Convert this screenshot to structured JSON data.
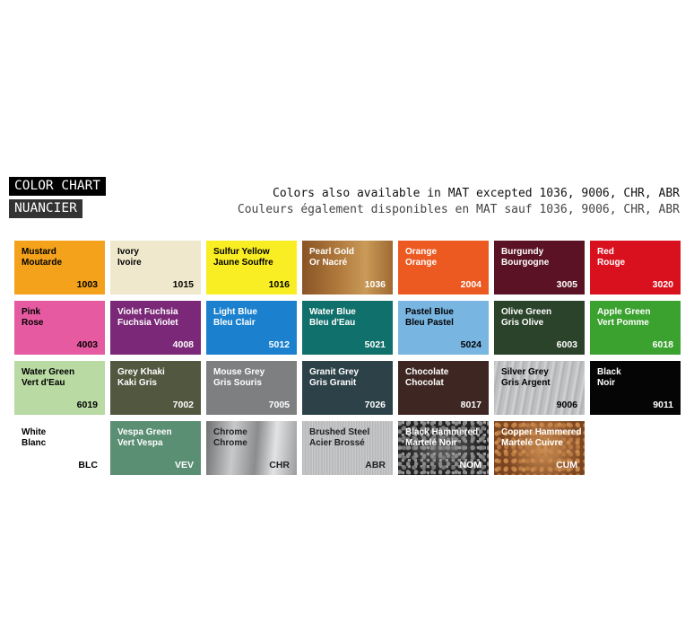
{
  "header": {
    "title_en": "COLOR CHART",
    "title_fr": "NUANCIER",
    "note_en": "Colors also available in MAT excepted 1036, 9006, CHR, ABR",
    "note_fr": "Couleurs également disponibles en MAT sauf 1036, 9006, CHR, ABR"
  },
  "swatches": [
    {
      "name_en": "Mustard",
      "name_fr": "Moutarde",
      "code": "1003",
      "bg": "#f4a21c",
      "fg": "#000000"
    },
    {
      "name_en": "Ivory",
      "name_fr": "Ivoire",
      "code": "1015",
      "bg": "#efe8cc",
      "fg": "#000000"
    },
    {
      "name_en": "Sulfur Yellow",
      "name_fr": "Jaune Souffre",
      "code": "1016",
      "bg": "#f9ee24",
      "fg": "#000000"
    },
    {
      "name_en": "Pearl Gold",
      "name_fr": "Or Nacré",
      "code": "1036",
      "bg": "#9a6130",
      "fg": "#ffffff",
      "texture": "pearl"
    },
    {
      "name_en": "Orange",
      "name_fr": "Orange",
      "code": "2004",
      "bg": "#ec5a22",
      "fg": "#ffffff"
    },
    {
      "name_en": "Burgundy",
      "name_fr": "Bourgogne",
      "code": "3005",
      "bg": "#5a1224",
      "fg": "#ffffff"
    },
    {
      "name_en": "Red",
      "name_fr": "Rouge",
      "code": "3020",
      "bg": "#d9111f",
      "fg": "#ffffff"
    },
    {
      "name_en": "Pink",
      "name_fr": "Rose",
      "code": "4003",
      "bg": "#e65aa1",
      "fg": "#000000"
    },
    {
      "name_en": "Violet Fuchsia",
      "name_fr": "Fuchsia Violet",
      "code": "4008",
      "bg": "#7a2877",
      "fg": "#ffffff"
    },
    {
      "name_en": "Light Blue",
      "name_fr": "Bleu Clair",
      "code": "5012",
      "bg": "#1b81cf",
      "fg": "#ffffff"
    },
    {
      "name_en": "Water Blue",
      "name_fr": "Bleu d'Eau",
      "code": "5021",
      "bg": "#10706b",
      "fg": "#ffffff"
    },
    {
      "name_en": "Pastel Blue",
      "name_fr": "Bleu Pastel",
      "code": "5024",
      "bg": "#79b5e1",
      "fg": "#000000"
    },
    {
      "name_en": "Olive Green",
      "name_fr": "Gris Olive",
      "code": "6003",
      "bg": "#2b432b",
      "fg": "#ffffff"
    },
    {
      "name_en": "Apple Green",
      "name_fr": "Vert Pomme",
      "code": "6018",
      "bg": "#3ba22f",
      "fg": "#ffffff"
    },
    {
      "name_en": "Water Green",
      "name_fr": "Vert d'Eau",
      "code": "6019",
      "bg": "#b9daa3",
      "fg": "#000000"
    },
    {
      "name_en": "Grey Khaki",
      "name_fr": "Kaki Gris",
      "code": "7002",
      "bg": "#52573f",
      "fg": "#ffffff"
    },
    {
      "name_en": "Mouse Grey",
      "name_fr": "Gris Souris",
      "code": "7005",
      "bg": "#7d7f80",
      "fg": "#ffffff"
    },
    {
      "name_en": "Granit Grey",
      "name_fr": "Gris Granit",
      "code": "7026",
      "bg": "#2d4148",
      "fg": "#ffffff"
    },
    {
      "name_en": "Chocolate",
      "name_fr": "Chocolat",
      "code": "8017",
      "bg": "#3e2722",
      "fg": "#ffffff"
    },
    {
      "name_en": "Silver Grey",
      "name_fr": "Gris Argent",
      "code": "9006",
      "bg": "#c2c3c5",
      "fg": "#000000",
      "texture": "silver"
    },
    {
      "name_en": "Black",
      "name_fr": "Noir",
      "code": "9011",
      "bg": "#050505",
      "fg": "#ffffff"
    },
    {
      "name_en": "White",
      "name_fr": "Blanc",
      "code": "BLC",
      "bg": "#ffffff",
      "fg": "#000000"
    },
    {
      "name_en": "Vespa Green",
      "name_fr": "Vert Vespa",
      "code": "VEV",
      "bg": "#5b8f74",
      "fg": "#ffffff"
    },
    {
      "name_en": "Chrome",
      "name_fr": "Chrome",
      "code": "CHR",
      "bg": "#9c9d9f",
      "fg": "#222222",
      "texture": "chrome"
    },
    {
      "name_en": "Brushed Steel",
      "name_fr": "Acier Brossé",
      "code": "ABR",
      "bg": "#b9bbbd",
      "fg": "#222222",
      "texture": "brushed"
    },
    {
      "name_en": "Black Hammered",
      "name_fr": "Martelé Noir",
      "code": "NOM",
      "bg": "#3a3a3a",
      "fg": "#ffffff",
      "texture": "hammered-black"
    },
    {
      "name_en": "Copper Hammered",
      "name_fr": "Martelé Cuivre",
      "code": "CUM",
      "bg": "#8c5026",
      "fg": "#ffffff",
      "texture": "hammered-copper"
    }
  ]
}
